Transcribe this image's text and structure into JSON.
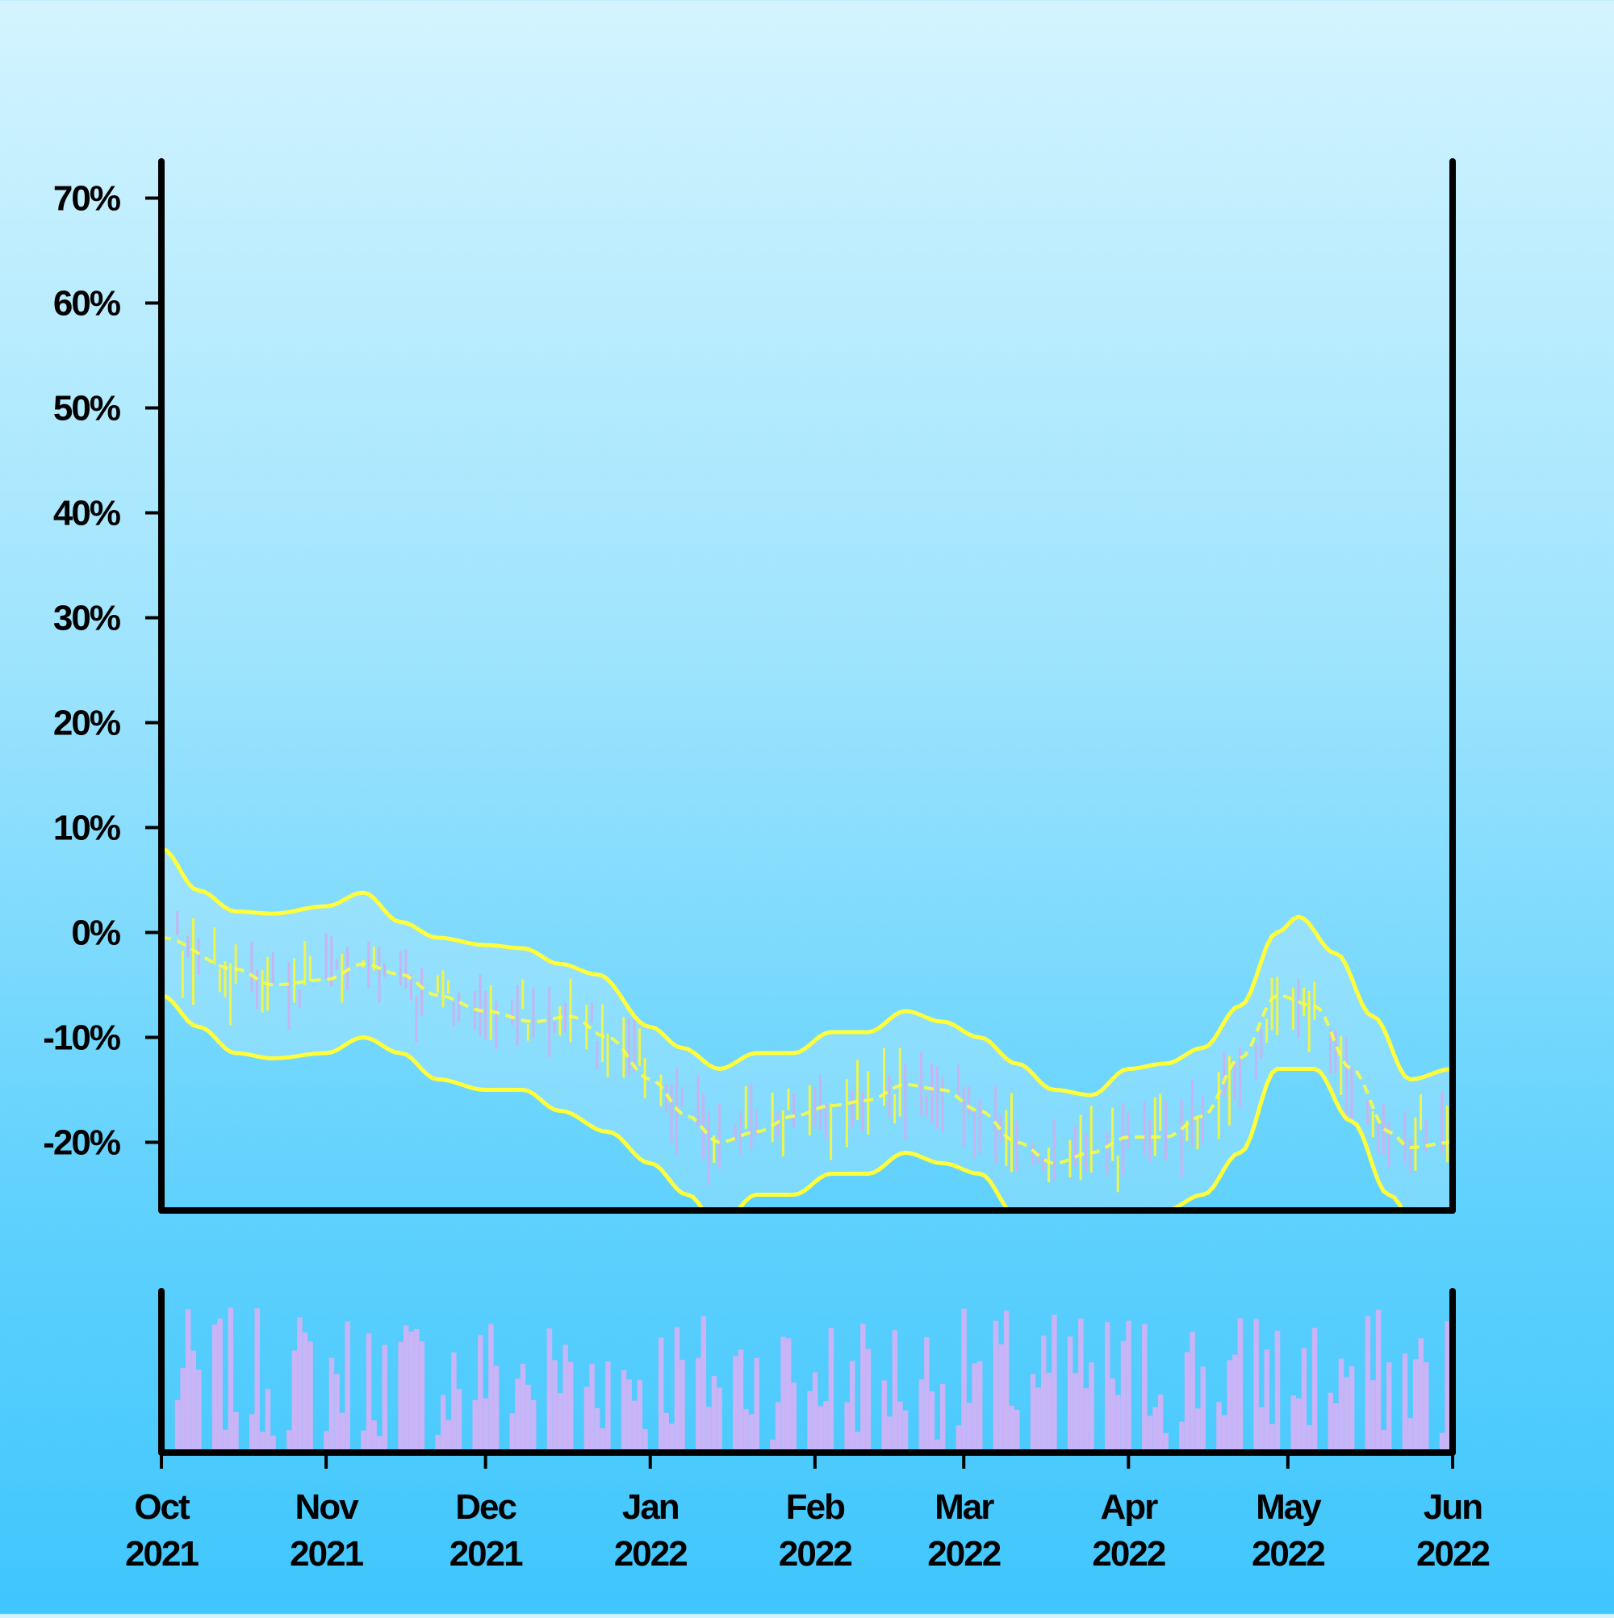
{
  "chart_data": {
    "type": "candlestick",
    "title": "",
    "xlabel": "",
    "ylabel": "",
    "x_range": [
      "2021-10-01",
      "2022-06-01"
    ],
    "ylim": [
      -26.5,
      73.5
    ],
    "y_ticks": [
      -20,
      -10,
      0,
      10,
      20,
      30,
      40,
      50,
      60,
      70
    ],
    "y_tick_labels": [
      "-20%",
      "-10%",
      "0%",
      "10%",
      "20%",
      "30%",
      "40%",
      "50%",
      "60%",
      "70%"
    ],
    "x_ticks": [
      {
        "date": "2021-10-01",
        "month": "Oct",
        "year": "2021"
      },
      {
        "date": "2021-11-01",
        "month": "Nov",
        "year": "2021"
      },
      {
        "date": "2021-12-01",
        "month": "Dec",
        "year": "2021"
      },
      {
        "date": "2022-01-01",
        "month": "Jan",
        "year": "2022"
      },
      {
        "date": "2022-02-01",
        "month": "Feb",
        "year": "2022"
      },
      {
        "date": "2022-03-01",
        "month": "Mar",
        "year": "2022"
      },
      {
        "date": "2022-04-01",
        "month": "Apr",
        "year": "2022"
      },
      {
        "date": "2022-05-01",
        "month": "May",
        "year": "2022"
      },
      {
        "date": "2022-06-01",
        "month": "Jun",
        "year": "2022"
      }
    ],
    "grid": false,
    "legend": "none",
    "colors": {
      "up": "#f0f54a",
      "down": "#c7b4f0",
      "bands": "#ffff3a",
      "volume": "#c8b4f6",
      "axis": "#000000"
    },
    "price_anchors": [
      [
        "2021-10-01",
        1
      ],
      [
        "2021-10-08",
        -3
      ],
      [
        "2021-10-15",
        -5
      ],
      [
        "2021-10-22",
        -5
      ],
      [
        "2021-10-29",
        -4
      ],
      [
        "2021-11-05",
        -3
      ],
      [
        "2021-11-12",
        -4
      ],
      [
        "2021-11-19",
        -6
      ],
      [
        "2021-11-26",
        -7
      ],
      [
        "2021-12-03",
        -8
      ],
      [
        "2021-12-10",
        -8.5
      ],
      [
        "2021-12-17",
        -8
      ],
      [
        "2021-12-24",
        -10
      ],
      [
        "2021-12-31",
        -13
      ],
      [
        "2022-01-07",
        -17
      ],
      [
        "2022-01-14",
        -20
      ],
      [
        "2022-01-21",
        -19
      ],
      [
        "2022-01-28",
        -17
      ],
      [
        "2022-02-04",
        -17.5
      ],
      [
        "2022-02-11",
        -16
      ],
      [
        "2022-02-18",
        -15
      ],
      [
        "2022-02-25",
        -15.5
      ],
      [
        "2022-03-04",
        -18
      ],
      [
        "2022-03-11",
        -20
      ],
      [
        "2022-03-18",
        -22
      ],
      [
        "2022-03-25",
        -21
      ],
      [
        "2022-04-01",
        -20
      ],
      [
        "2022-04-08",
        -19.5
      ],
      [
        "2022-04-15",
        -18
      ],
      [
        "2022-04-22",
        -14
      ],
      [
        "2022-04-29",
        -7
      ],
      [
        "2022-05-06",
        -8
      ],
      [
        "2022-05-13",
        -14
      ],
      [
        "2022-05-20",
        -20
      ],
      [
        "2022-05-27",
        -20
      ],
      [
        "2022-06-01",
        -18
      ]
    ],
    "middle_band": [
      [
        "2021-10-01",
        -0.5
      ],
      [
        "2021-10-15",
        -3.5
      ],
      [
        "2021-10-22",
        -5
      ],
      [
        "2021-11-01",
        -4.5
      ],
      [
        "2021-11-08",
        -3
      ],
      [
        "2021-11-15",
        -4
      ],
      [
        "2021-11-22",
        -6
      ],
      [
        "2021-12-01",
        -7.5
      ],
      [
        "2021-12-10",
        -8.5
      ],
      [
        "2021-12-17",
        -8
      ],
      [
        "2021-12-24",
        -10
      ],
      [
        "2022-01-01",
        -14
      ],
      [
        "2022-01-08",
        -17.5
      ],
      [
        "2022-01-14",
        -20
      ],
      [
        "2022-01-21",
        -19
      ],
      [
        "2022-01-28",
        -17.5
      ],
      [
        "2022-02-04",
        -16.5
      ],
      [
        "2022-02-11",
        -16
      ],
      [
        "2022-02-18",
        -14.5
      ],
      [
        "2022-02-25",
        -15
      ],
      [
        "2022-03-04",
        -17
      ],
      [
        "2022-03-11",
        -20
      ],
      [
        "2022-03-18",
        -22
      ],
      [
        "2022-03-25",
        -21
      ],
      [
        "2022-04-01",
        -19.5
      ],
      [
        "2022-04-08",
        -19.5
      ],
      [
        "2022-04-15",
        -17.5
      ],
      [
        "2022-04-22",
        -12
      ],
      [
        "2022-04-29",
        -6
      ],
      [
        "2022-05-06",
        -7
      ],
      [
        "2022-05-13",
        -13
      ],
      [
        "2022-05-20",
        -19
      ],
      [
        "2022-05-24",
        -20.5
      ],
      [
        "2022-06-01",
        -20
      ]
    ],
    "upper_band": [
      [
        "2021-10-01",
        8
      ],
      [
        "2021-10-08",
        4
      ],
      [
        "2021-10-15",
        2
      ],
      [
        "2021-10-22",
        1.8
      ],
      [
        "2021-11-01",
        2.5
      ],
      [
        "2021-11-08",
        3.8
      ],
      [
        "2021-11-15",
        1
      ],
      [
        "2021-11-22",
        -0.5
      ],
      [
        "2021-12-01",
        -1.2
      ],
      [
        "2021-12-08",
        -1.5
      ],
      [
        "2021-12-15",
        -3
      ],
      [
        "2021-12-22",
        -4
      ],
      [
        "2022-01-01",
        -9
      ],
      [
        "2022-01-07",
        -11
      ],
      [
        "2022-01-14",
        -13
      ],
      [
        "2022-01-21",
        -11.5
      ],
      [
        "2022-01-28",
        -11.5
      ],
      [
        "2022-02-04",
        -9.5
      ],
      [
        "2022-02-11",
        -9.5
      ],
      [
        "2022-02-18",
        -7.5
      ],
      [
        "2022-02-25",
        -8.5
      ],
      [
        "2022-03-04",
        -10
      ],
      [
        "2022-03-11",
        -12.5
      ],
      [
        "2022-03-18",
        -15
      ],
      [
        "2022-03-25",
        -15.5
      ],
      [
        "2022-04-01",
        -13
      ],
      [
        "2022-04-08",
        -12.5
      ],
      [
        "2022-04-15",
        -11
      ],
      [
        "2022-04-22",
        -7
      ],
      [
        "2022-04-29",
        0
      ],
      [
        "2022-05-03",
        1.5
      ],
      [
        "2022-05-10",
        -2
      ],
      [
        "2022-05-17",
        -8
      ],
      [
        "2022-05-24",
        -14
      ],
      [
        "2022-06-01",
        -13
      ]
    ],
    "lower_band": [
      [
        "2021-10-01",
        -6
      ],
      [
        "2021-10-08",
        -9
      ],
      [
        "2021-10-15",
        -11.5
      ],
      [
        "2021-10-22",
        -12
      ],
      [
        "2021-11-01",
        -11.5
      ],
      [
        "2021-11-08",
        -10
      ],
      [
        "2021-11-15",
        -11.5
      ],
      [
        "2021-11-22",
        -14
      ],
      [
        "2021-12-01",
        -15
      ],
      [
        "2021-12-08",
        -15
      ],
      [
        "2021-12-15",
        -17
      ],
      [
        "2021-12-24",
        -19
      ],
      [
        "2022-01-01",
        -22
      ],
      [
        "2022-01-08",
        -25
      ],
      [
        "2022-01-14",
        -28
      ],
      [
        "2022-01-21",
        -25
      ],
      [
        "2022-01-28",
        -25
      ],
      [
        "2022-02-04",
        -23
      ],
      [
        "2022-02-11",
        -23
      ],
      [
        "2022-02-18",
        -21
      ],
      [
        "2022-02-25",
        -22
      ],
      [
        "2022-03-04",
        -23
      ],
      [
        "2022-03-11",
        -27
      ],
      [
        "2022-03-18",
        -29
      ],
      [
        "2022-03-25",
        -29
      ],
      [
        "2022-04-01",
        -28
      ],
      [
        "2022-04-08",
        -26.5
      ],
      [
        "2022-04-15",
        -25
      ],
      [
        "2022-04-22",
        -21
      ],
      [
        "2022-04-29",
        -13
      ],
      [
        "2022-05-06",
        -13
      ],
      [
        "2022-05-13",
        -18
      ],
      [
        "2022-05-20",
        -25
      ],
      [
        "2022-05-27",
        -30
      ],
      [
        "2022-06-01",
        -32
      ]
    ],
    "volume_scale": [
      0,
      100
    ]
  }
}
